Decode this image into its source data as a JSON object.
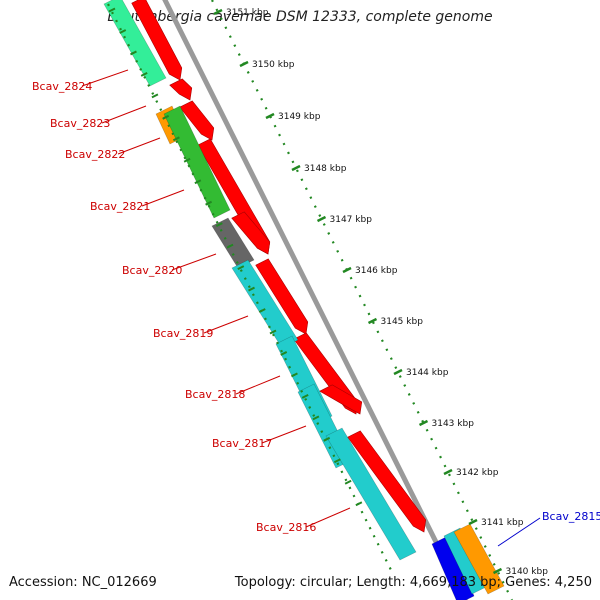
{
  "title": "Beutenbergia cavernae DSM 12333, complete genome",
  "footer": {
    "accession": "Accession: NC_012669",
    "summary": "Topology: circular; Length: 4,669,183 bp; Genes: 4,250"
  },
  "scale": {
    "unit": "kbp",
    "ticks": [
      "3151 kbp",
      "3150 kbp",
      "3149 kbp",
      "3148 kbp",
      "3147 kbp",
      "3146 kbp",
      "3145 kbp",
      "3144 kbp",
      "3143 kbp",
      "3142 kbp",
      "3141 kbp",
      "3140 kbp"
    ]
  },
  "genes": [
    {
      "label": "Bcav_2824",
      "color": "#d40000",
      "cog_color": "#33ee99"
    },
    {
      "label": "Bcav_2823",
      "color": "#d40000",
      "cog_color": "#ff9900"
    },
    {
      "label": "Bcav_2822",
      "color": "#d40000",
      "cog_color": "#33bb33"
    },
    {
      "label": "Bcav_2821",
      "color": "#d40000",
      "cog_color": "#33bb33"
    },
    {
      "label": "Bcav_2820",
      "color": "#d40000",
      "cog_color": "#666666"
    },
    {
      "label": "Bcav_2819",
      "color": "#d40000",
      "cog_color": "#22cccc"
    },
    {
      "label": "Bcav_2818",
      "color": "#d40000",
      "cog_color": "#22cccc"
    },
    {
      "label": "Bcav_2817",
      "color": "#d40000",
      "cog_color": "#22cccc"
    },
    {
      "label": "Bcav_2816",
      "color": "#d40000",
      "cog_color": "#22cccc"
    },
    {
      "label": "Bcav_2815",
      "color": "#0000cc",
      "cog_color": "#0000ee"
    }
  ],
  "colors": {
    "forward_gene": "#ff0000",
    "reverse_label": "#cc0000",
    "highlight_label": "#0000cc",
    "backbone": "#888888",
    "tick_marks": "#228822"
  }
}
